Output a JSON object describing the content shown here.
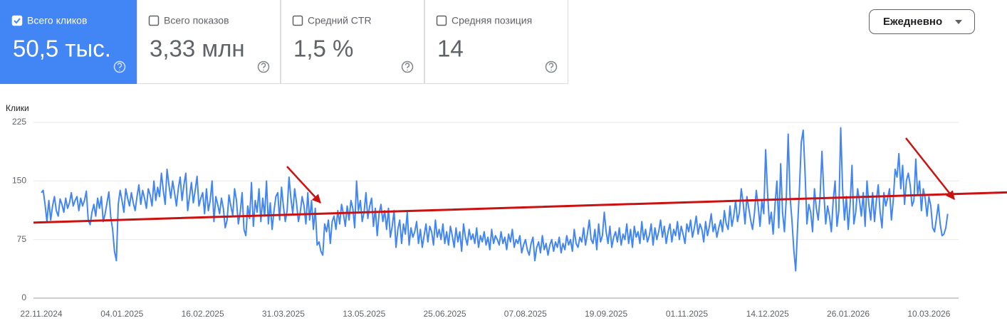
{
  "metrics": [
    {
      "label": "Всего кликов",
      "value": "50,5 тыс.",
      "selected": true
    },
    {
      "label": "Всего показов",
      "value": "3,33 млн",
      "selected": false
    },
    {
      "label": "Средний CTR",
      "value": "1,5 %",
      "selected": false
    },
    {
      "label": "Средняя позиция",
      "value": "14",
      "selected": false
    }
  ],
  "period_selector": "Ежедневно",
  "chart_data": {
    "type": "line",
    "categories": [
      "22.11.2024",
      null,
      null,
      null,
      null,
      null,
      null,
      null,
      null,
      null,
      null,
      null,
      null,
      null,
      null,
      null,
      null,
      null,
      null,
      null,
      null,
      null,
      null,
      null,
      null,
      null,
      null,
      null,
      null,
      null,
      null,
      null,
      null,
      null,
      null,
      null,
      null,
      null,
      null,
      null,
      null,
      null,
      null,
      "04.01.2025",
      null,
      null,
      null,
      null,
      null,
      null,
      null,
      null,
      null,
      null,
      null,
      null,
      null,
      null,
      null,
      null,
      null,
      null,
      null,
      null,
      null,
      null,
      null,
      null,
      null,
      null,
      null,
      null,
      null,
      null,
      null,
      null,
      null,
      null,
      null,
      null,
      null,
      null,
      null,
      null,
      null,
      null,
      "16.02.2025",
      null,
      null,
      null,
      null,
      null,
      null,
      null,
      null,
      null,
      null,
      null,
      null,
      null,
      null,
      null,
      null,
      null,
      null,
      null,
      null,
      null,
      null,
      null,
      null,
      null,
      null,
      null,
      null,
      null,
      null,
      null,
      null,
      null,
      null,
      null,
      null,
      null,
      null,
      null,
      null,
      null,
      null,
      "31.03.2025",
      null,
      null,
      null,
      null,
      null,
      null,
      null,
      null,
      null,
      null,
      null,
      null,
      null,
      null,
      null,
      null,
      null,
      null,
      null,
      null,
      null,
      null,
      null,
      null,
      null,
      null,
      null,
      null,
      null,
      null,
      null,
      null,
      null,
      null,
      null,
      null,
      null,
      null,
      null,
      null,
      null,
      null,
      "13.05.2025",
      null,
      null,
      null,
      null,
      null,
      null,
      null,
      null,
      null,
      null,
      null,
      null,
      null,
      null,
      null,
      null,
      null,
      null,
      null,
      null,
      null,
      null,
      null,
      null,
      null,
      null,
      null,
      null,
      null,
      null,
      null,
      null,
      null,
      null,
      null,
      null,
      null,
      null,
      null,
      null,
      null,
      null,
      "25.06.2025",
      null,
      null,
      null,
      null,
      null,
      null,
      null,
      null,
      null,
      null,
      null,
      null,
      null,
      null,
      null,
      null,
      null,
      null,
      null,
      null,
      null,
      null,
      null,
      null,
      null,
      null,
      null,
      null,
      null,
      null,
      null,
      null,
      null,
      null,
      null,
      null,
      null,
      null,
      null,
      null,
      null,
      null,
      "07.08.2025",
      null,
      null,
      null,
      null,
      null,
      null,
      null,
      null,
      null,
      null,
      null,
      null,
      null,
      null,
      null,
      null,
      null,
      null,
      null,
      null,
      null,
      null,
      null,
      null,
      null,
      null,
      null,
      null,
      null,
      null,
      null,
      null,
      null,
      null,
      null,
      null,
      null,
      null,
      null,
      null,
      null,
      null,
      "19.09.2025",
      null,
      null,
      null,
      null,
      null,
      null,
      null,
      null,
      null,
      null,
      null,
      null,
      null,
      null,
      null,
      null,
      null,
      null,
      null,
      null,
      null,
      null,
      null,
      null,
      null,
      null,
      null,
      null,
      null,
      null,
      null,
      null,
      null,
      null,
      null,
      null,
      null,
      null,
      null,
      null,
      null,
      null,
      "01.11.2025",
      null,
      null,
      null,
      null,
      null,
      null,
      null,
      null,
      null,
      null,
      null,
      null,
      null,
      null,
      null,
      null,
      null,
      null,
      null,
      null,
      null,
      null,
      null,
      null,
      null,
      null,
      null,
      null,
      null,
      null,
      null,
      null,
      null,
      null,
      null,
      null,
      null,
      null,
      null,
      null,
      null,
      null,
      "14.12.2025",
      null,
      null,
      null,
      null,
      null,
      null,
      null,
      null,
      null,
      null,
      null,
      null,
      null,
      null,
      null,
      null,
      null,
      null,
      null,
      null,
      null,
      null,
      null,
      null,
      null,
      null,
      null,
      null,
      null,
      null,
      null,
      null,
      null,
      null,
      null,
      null,
      null,
      null,
      null,
      null,
      null,
      null,
      "26.01.2026",
      null,
      null,
      null,
      null,
      null,
      null,
      null,
      null,
      null,
      null,
      null,
      null,
      null,
      null,
      null,
      null,
      null,
      null,
      null,
      null,
      null,
      null,
      null,
      null,
      null,
      null,
      null,
      null,
      null,
      null,
      null,
      null,
      null,
      null,
      null,
      null,
      null,
      null,
      null,
      null,
      null,
      null,
      "10.03.2026",
      null,
      null,
      null,
      null,
      null,
      null,
      null,
      null,
      null,
      null
    ],
    "series": [
      {
        "name": "Клики",
        "color": "#4285f4",
        "values": [
          135,
          138,
          120,
          98,
          125,
          100,
          118,
          130,
          112,
          105,
          127,
          120,
          110,
          128,
          115,
          122,
          135,
          118,
          125,
          130,
          112,
          128,
          118,
          125,
          137,
          100,
          94,
          110,
          120,
          105,
          128,
          115,
          130,
          98,
          108,
          122,
          136,
          104,
          88,
          60,
          48,
          120,
          138,
          125,
          110,
          140,
          128,
          118,
          135,
          122,
          112,
          130,
          145,
          120,
          138,
          128,
          115,
          140,
          132,
          118,
          150,
          125,
          142,
          130,
          160,
          138,
          120,
          165,
          145,
          128,
          150,
          135,
          118,
          140,
          155,
          125,
          145,
          160,
          112,
          130,
          148,
          122,
          138,
          156,
          118,
          128,
          135,
          108,
          140,
          112,
          125,
          150,
          98,
          130,
          120,
          108,
          128,
          115,
          90,
          100,
          132,
          118,
          106,
          140,
          125,
          95,
          110,
          135,
          88,
          80,
          118,
          102,
          148,
          92,
          125,
          110,
          140,
          98,
          128,
          105,
          150,
          95,
          122,
          88,
          112,
          130,
          135,
          100,
          142,
          118,
          98,
          112,
          155,
          128,
          108,
          140,
          122,
          98,
          110,
          130,
          118,
          95,
          135,
          100,
          125,
          88,
          115,
          68,
          72,
          60,
          55,
          95,
          85,
          100,
          70,
          98,
          105,
          88,
          112,
          95,
          120,
          108,
          92,
          118,
          100,
          125,
          115,
          90,
          150,
          112,
          125,
          98,
          110,
          135,
          102,
          118,
          128,
          92,
          115,
          80,
          108,
          120,
          98,
          112,
          88,
          115,
          78,
          92,
          112,
          65,
          88,
          100,
          70,
          95,
          82,
          110,
          68,
          90,
          78,
          85,
          98,
          70,
          88,
          65,
          80,
          95,
          72,
          92,
          85,
          68,
          100,
          78,
          88,
          75,
          95,
          70,
          85,
          68,
          92,
          80,
          65,
          90,
          72,
          85,
          60,
          95,
          78,
          68,
          88,
          75,
          82,
          70,
          90,
          65,
          80,
          72,
          85,
          68,
          78,
          62,
          88,
          70,
          80,
          75,
          68,
          85,
          70,
          78,
          62,
          82,
          72,
          88,
          65,
          75,
          70,
          80,
          58,
          68,
          75,
          62,
          55,
          70,
          78,
          48,
          65,
          72,
          58,
          80,
          62,
          70,
          55,
          68,
          75,
          60,
          72,
          65,
          78,
          58,
          70,
          62,
          80,
          68,
          75,
          60,
          88,
          70,
          65,
          78,
          72,
          90,
          68,
          82,
          100,
          75,
          70,
          88,
          62,
          95,
          72,
          80,
          110,
          85,
          70,
          92,
          65,
          78,
          85,
          72,
          90,
          68,
          82,
          75,
          95,
          70,
          88,
          65,
          92,
          78,
          85,
          70,
          98,
          75,
          88,
          72,
          80,
          95,
          68,
          90,
          75,
          85,
          100,
          78,
          92,
          70,
          85,
          95,
          72,
          88,
          80,
          98,
          75,
          92,
          82,
          70,
          95,
          85,
          100,
          78,
          90,
          105,
          82,
          95,
          88,
          72,
          98,
          80,
          92,
          108,
          85,
          95,
          78,
          90,
          100,
          85,
          112,
          95,
          88,
          118,
          92,
          105,
          125,
          98,
          110,
          140,
          122,
          95,
          130,
          115,
          100,
          88,
          108,
          138,
          118,
          92,
          125,
          108,
          190,
          135,
          95,
          110,
          82,
          120,
          150,
          90,
          172,
          110,
          85,
          128,
          210,
          130,
          100,
          62,
          35,
          90,
          140,
          200,
          215,
          160,
          95,
          120,
          110,
          85,
          140,
          115,
          100,
          130,
          188,
          135,
          95,
          118,
          105,
          85,
          125,
          150,
          92,
          112,
          218,
          140,
          100,
          130,
          88,
          120,
          170,
          95,
          110,
          140,
          125,
          105,
          135,
          92,
          150,
          120,
          100,
          135,
          98,
          125,
          145,
          110,
          90,
          135,
          118,
          128,
          140,
          100,
          125,
          165,
          155,
          185,
          140,
          170,
          120,
          150,
          160,
          145,
          118,
          125,
          178,
          132,
          150,
          112,
          140,
          128,
          105,
          130,
          118,
          90,
          85,
          102,
          120,
          95,
          80,
          82,
          90,
          108
        ]
      }
    ],
    "trend_line": {
      "color": "#cc1111",
      "values": [
        97,
        133
      ]
    },
    "ylim": [
      0,
      225
    ],
    "yticks": [
      0,
      75,
      150,
      225
    ],
    "grid": true
  }
}
